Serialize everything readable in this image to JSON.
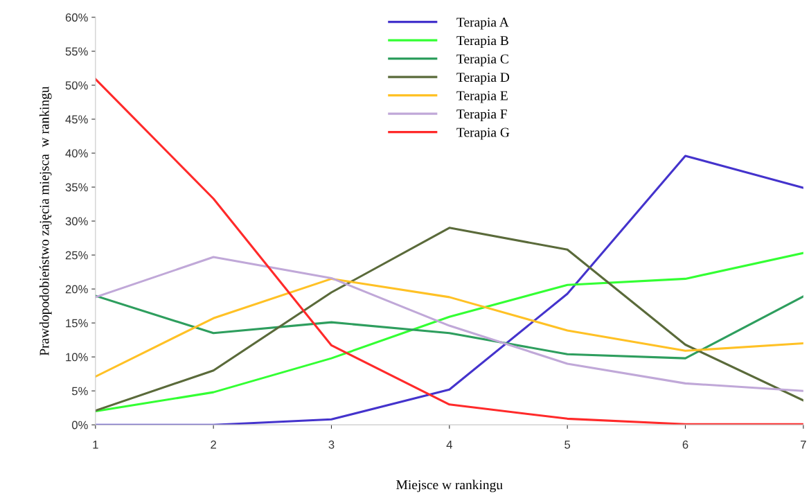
{
  "chart_data": {
    "type": "line",
    "xlabel": "Miejsce w rankingu",
    "ylabel": "Prawdopodobieństwo zajęcia miejsca  w rankingu",
    "x": [
      1,
      2,
      3,
      4,
      5,
      6,
      7
    ],
    "xlim": [
      1,
      7
    ],
    "xticks": [
      1,
      2,
      3,
      4,
      5,
      6,
      7
    ],
    "ylim": [
      0,
      60
    ],
    "yticks": [
      {
        "value": 0,
        "label": "0%"
      },
      {
        "value": 5,
        "label": "5%"
      },
      {
        "value": 10,
        "label": "10%"
      },
      {
        "value": 15,
        "label": "15%"
      },
      {
        "value": 20,
        "label": "20%"
      },
      {
        "value": 25,
        "label": "25%"
      },
      {
        "value": 30,
        "label": "30%"
      },
      {
        "value": 35,
        "label": "35%"
      },
      {
        "value": 40,
        "label": "40%"
      },
      {
        "value": 45,
        "label": "45%"
      },
      {
        "value": 50,
        "label": "50%"
      },
      {
        "value": 55,
        "label": "55%"
      },
      {
        "value": 60,
        "label": "60%"
      }
    ],
    "grid": false,
    "legend": "top",
    "marker": "none",
    "line_style": "solid",
    "series": [
      {
        "name": "Terapia A",
        "color": "#4433cc",
        "values": [
          0,
          0,
          0.8,
          5.2,
          19.3,
          39.6,
          34.9
        ]
      },
      {
        "name": "Terapia B",
        "color": "#33ff33",
        "values": [
          2,
          4.8,
          9.8,
          15.9,
          20.6,
          21.5,
          25.3
        ]
      },
      {
        "name": "Terapia C",
        "color": "#2e9e5e",
        "values": [
          19,
          13.5,
          15.1,
          13.5,
          10.4,
          9.8,
          18.9
        ]
      },
      {
        "name": "Terapia D",
        "color": "#5a6a3a",
        "values": [
          2.1,
          8,
          19.5,
          29,
          25.8,
          11.8,
          3.6
        ]
      },
      {
        "name": "Terapia E",
        "color": "#ffc125",
        "values": [
          7.1,
          15.7,
          21.5,
          18.8,
          13.9,
          10.9,
          12
        ]
      },
      {
        "name": "Terapia F",
        "color": "#c0a8d8",
        "values": [
          18.8,
          24.7,
          21.6,
          14.6,
          9,
          6.1,
          5
        ]
      },
      {
        "name": "Terapia G",
        "color": "#ff2a2a",
        "values": [
          50.9,
          33.3,
          11.7,
          3,
          0.9,
          0.1,
          0.1
        ]
      }
    ]
  }
}
